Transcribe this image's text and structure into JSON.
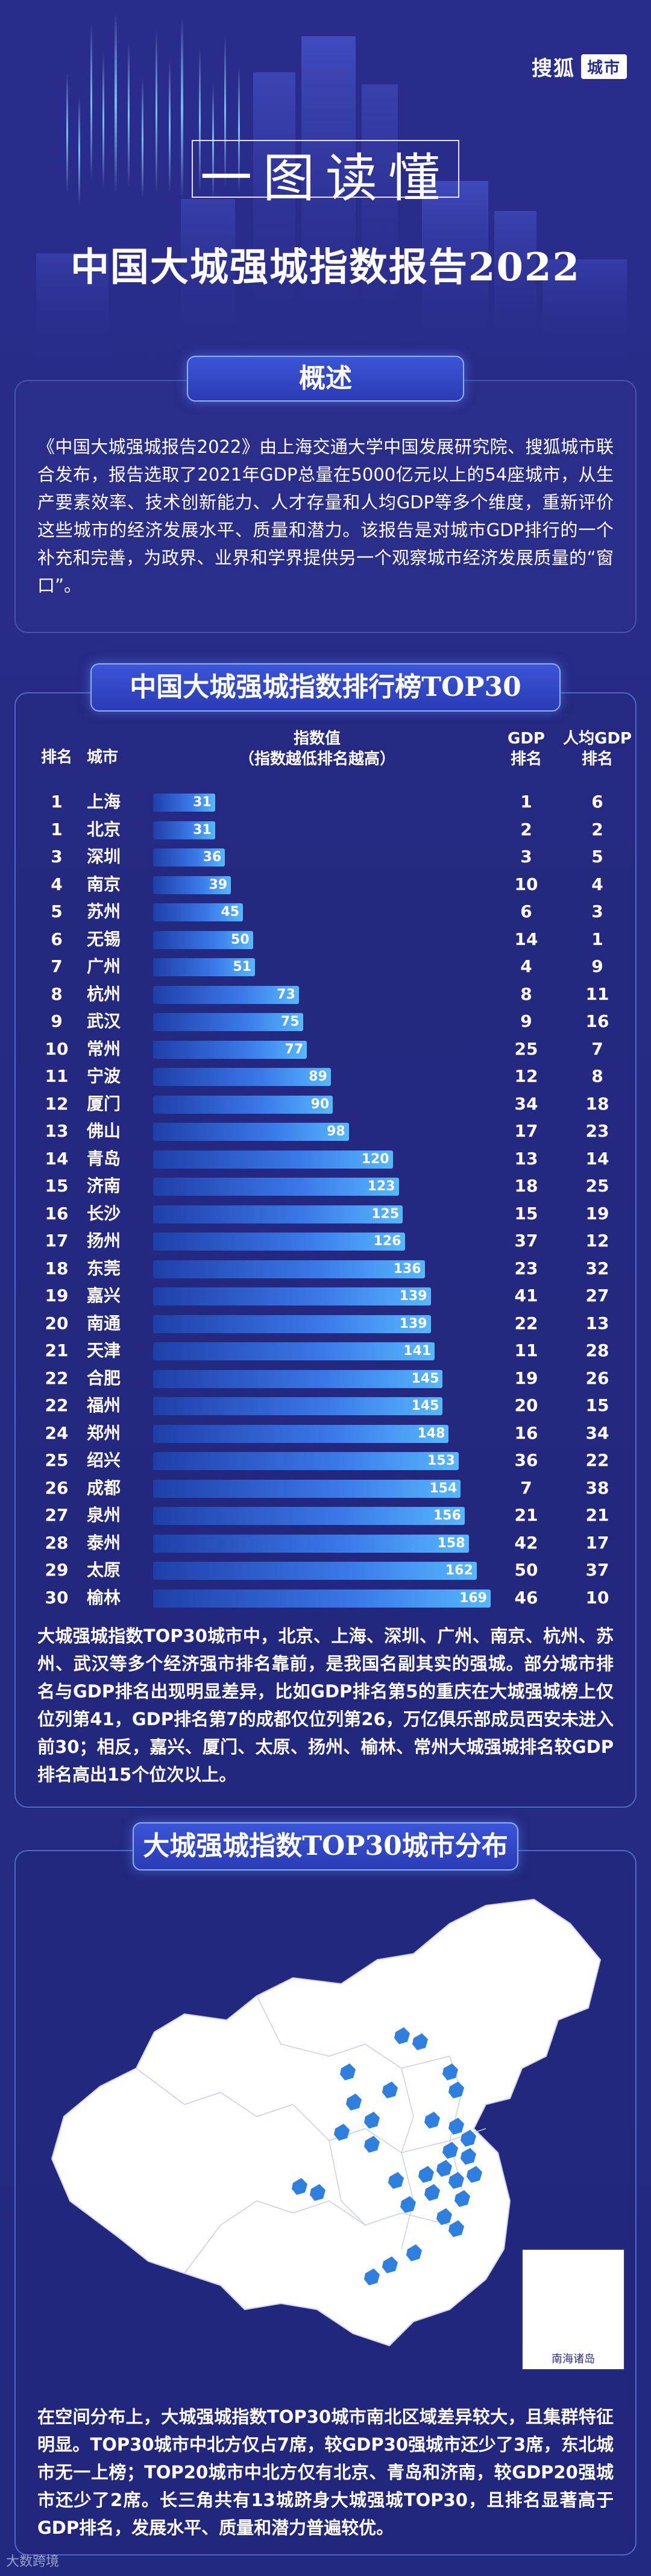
{
  "brand": {
    "name": "搜狐",
    "tag": "城市"
  },
  "hero": {
    "subtitle": "一图读懂",
    "title": "中国大城强城指数报告2022"
  },
  "overview": {
    "title": "概述",
    "text": "《中国大城强城报告2022》由上海交通大学中国发展研究院、搜狐城市联合发布，报告选取了2021年GDP总量在5000亿元以上的54座城市，从生产要素效率、技术创新能力、人才存量和人均GDP等多个维度，重新评价这些城市的经济发展水平、质量和潜力。该报告是对城市GDP排行的一个补充和完善，为政界、业界和学界提供另一个观察城市经济发展质量的“窗口”。"
  },
  "ranking": {
    "title": "中国大城强城指数排行榜TOP30",
    "headers": {
      "rank": "排名",
      "city": "城市",
      "index_line1": "指数值",
      "index_line2": "（指数越低排名越高）",
      "gdp_line1": "GDP",
      "gdp_line2": "排名",
      "pgdp_line1": "人均GDP",
      "pgdp_line2": "排名"
    },
    "note": "大城强城指数TOP30城市中，北京、上海、深圳、广州、南京、杭州、苏州、武汉等多个经济强市排名靠前，是我国名副其实的强城。部分城市排名与GDP排名出现明显差异，比如GDP排名第5的重庆在大城强城榜上仅位列第41，GDP排名第7的成都仅位列第26，万亿俱乐部成员西安未进入前30；相反，嘉兴、厦门、太原、扬州、榆林、常州大城强城排名较GDP排名高出15个位次以上。"
  },
  "chart_data": {
    "type": "bar",
    "title": "中国大城强城指数排行榜TOP30",
    "xlabel": "指数值（指数越低排名越高）",
    "ylabel": "",
    "columns": [
      "排名",
      "城市",
      "指数值",
      "GDP排名",
      "人均GDP排名"
    ],
    "rows": [
      {
        "rank": "1",
        "city": "上海",
        "value": 31,
        "gdp_rank": "1",
        "pgdp_rank": "6"
      },
      {
        "rank": "1",
        "city": "北京",
        "value": 31,
        "gdp_rank": "2",
        "pgdp_rank": "2"
      },
      {
        "rank": "3",
        "city": "深圳",
        "value": 36,
        "gdp_rank": "3",
        "pgdp_rank": "5"
      },
      {
        "rank": "4",
        "city": "南京",
        "value": 39,
        "gdp_rank": "10",
        "pgdp_rank": "4"
      },
      {
        "rank": "5",
        "city": "苏州",
        "value": 45,
        "gdp_rank": "6",
        "pgdp_rank": "3"
      },
      {
        "rank": "6",
        "city": "无锡",
        "value": 50,
        "gdp_rank": "14",
        "pgdp_rank": "1"
      },
      {
        "rank": "7",
        "city": "广州",
        "value": 51,
        "gdp_rank": "4",
        "pgdp_rank": "9"
      },
      {
        "rank": "8",
        "city": "杭州",
        "value": 73,
        "gdp_rank": "8",
        "pgdp_rank": "11"
      },
      {
        "rank": "9",
        "city": "武汉",
        "value": 75,
        "gdp_rank": "9",
        "pgdp_rank": "16"
      },
      {
        "rank": "10",
        "city": "常州",
        "value": 77,
        "gdp_rank": "25",
        "pgdp_rank": "7"
      },
      {
        "rank": "11",
        "city": "宁波",
        "value": 89,
        "gdp_rank": "12",
        "pgdp_rank": "8"
      },
      {
        "rank": "12",
        "city": "厦门",
        "value": 90,
        "gdp_rank": "34",
        "pgdp_rank": "18"
      },
      {
        "rank": "13",
        "city": "佛山",
        "value": 98,
        "gdp_rank": "17",
        "pgdp_rank": "23"
      },
      {
        "rank": "14",
        "city": "青岛",
        "value": 120,
        "gdp_rank": "13",
        "pgdp_rank": "14"
      },
      {
        "rank": "15",
        "city": "济南",
        "value": 123,
        "gdp_rank": "18",
        "pgdp_rank": "25"
      },
      {
        "rank": "16",
        "city": "长沙",
        "value": 125,
        "gdp_rank": "15",
        "pgdp_rank": "19"
      },
      {
        "rank": "17",
        "city": "扬州",
        "value": 126,
        "gdp_rank": "37",
        "pgdp_rank": "12"
      },
      {
        "rank": "18",
        "city": "东莞",
        "value": 136,
        "gdp_rank": "23",
        "pgdp_rank": "32"
      },
      {
        "rank": "19",
        "city": "嘉兴",
        "value": 139,
        "gdp_rank": "41",
        "pgdp_rank": "27"
      },
      {
        "rank": "20",
        "city": "南通",
        "value": 139,
        "gdp_rank": "22",
        "pgdp_rank": "13"
      },
      {
        "rank": "21",
        "city": "天津",
        "value": 141,
        "gdp_rank": "11",
        "pgdp_rank": "28"
      },
      {
        "rank": "22",
        "city": "合肥",
        "value": 145,
        "gdp_rank": "19",
        "pgdp_rank": "26"
      },
      {
        "rank": "22",
        "city": "福州",
        "value": 145,
        "gdp_rank": "20",
        "pgdp_rank": "15"
      },
      {
        "rank": "24",
        "city": "郑州",
        "value": 148,
        "gdp_rank": "16",
        "pgdp_rank": "34"
      },
      {
        "rank": "25",
        "city": "绍兴",
        "value": 153,
        "gdp_rank": "36",
        "pgdp_rank": "22"
      },
      {
        "rank": "26",
        "city": "成都",
        "value": 154,
        "gdp_rank": "7",
        "pgdp_rank": "38"
      },
      {
        "rank": "27",
        "city": "泉州",
        "value": 156,
        "gdp_rank": "21",
        "pgdp_rank": "21"
      },
      {
        "rank": "28",
        "city": "泰州",
        "value": 158,
        "gdp_rank": "42",
        "pgdp_rank": "17"
      },
      {
        "rank": "29",
        "city": "太原",
        "value": 162,
        "gdp_rank": "50",
        "pgdp_rank": "37"
      },
      {
        "rank": "30",
        "city": "榆林",
        "value": 169,
        "gdp_rank": "46",
        "pgdp_rank": "10"
      }
    ],
    "xlim": [
      0,
      169
    ],
    "bar_color": "#3a78e8",
    "grid": false
  },
  "map": {
    "title": "大城强城指数TOP30城市分布",
    "inset_label": "南海诸岛",
    "note": "在空间分布上，大城强城指数TOP30城市南北区域差异较大，且集群特征明显。TOP30城市中北方仅占7席，较GDP30强城市还少了3席，东北城市无一上榜；TOP20城市中北方仅有北京、青岛和济南，较GDP20强城市还少了2席。长三角共有13城跻身大城强城TOP30，且排名显著高于GDP排名，发展水平、质量和潜力普遍较优。",
    "land_color": "#ffffff",
    "highlight_color": "#2f7fe0"
  },
  "footer": {
    "source": "大数跨境"
  }
}
